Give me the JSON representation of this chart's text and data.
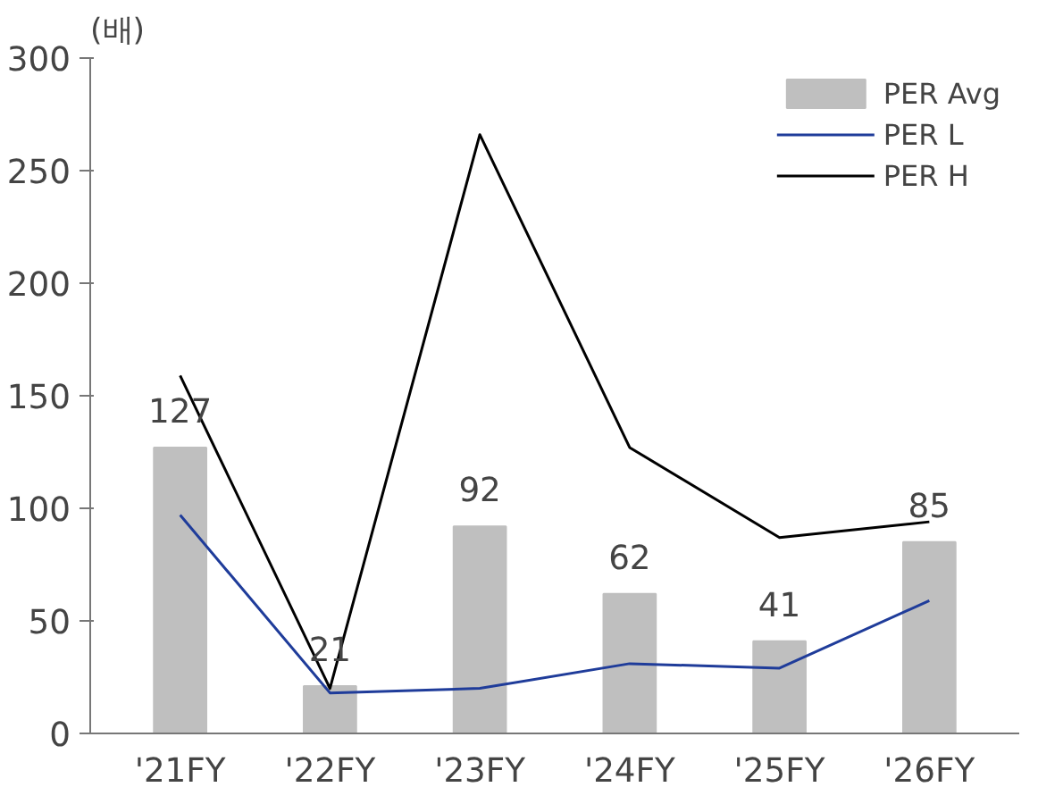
{
  "chart_data": {
    "type": "bar",
    "ylabel": "(배)",
    "categories": [
      "'21FY",
      "'22FY",
      "'23FY",
      "'24FY",
      "'25FY",
      "'26FY"
    ],
    "series": [
      {
        "name": "PER Avg",
        "color": "#bfbfbf",
        "values": [
          127,
          21,
          92,
          62,
          41,
          85
        ],
        "value_labels": [
          "127",
          "21",
          "92",
          "62",
          "41",
          "85"
        ]
      },
      {
        "name": "PER L",
        "type": "line",
        "color": "#1f3c9a",
        "values": [
          97,
          18,
          20,
          31,
          29,
          59
        ]
      },
      {
        "name": "PER H",
        "type": "line",
        "color": "#000000",
        "values": [
          159,
          20,
          266,
          127,
          87,
          94
        ]
      }
    ],
    "ylim": [
      0,
      300
    ],
    "yticks": [
      0,
      50,
      100,
      150,
      200,
      250,
      300
    ],
    "grid": false,
    "legend": "top right",
    "marker": "none",
    "line_style": "solid"
  }
}
